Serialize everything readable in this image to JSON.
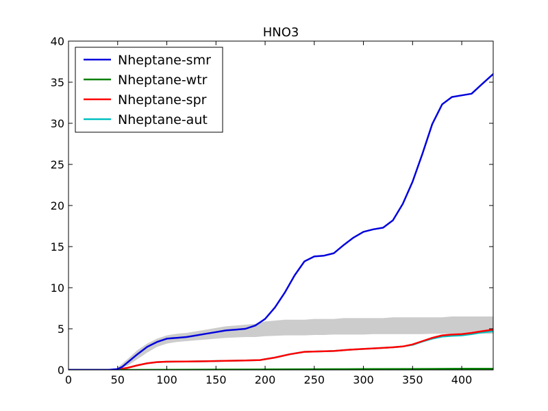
{
  "chart_data": {
    "type": "line",
    "title": "HNO3",
    "xlabel": "",
    "ylabel": "",
    "xlim": [
      0,
      432
    ],
    "ylim": [
      0,
      40
    ],
    "xticks": [
      0,
      50,
      100,
      150,
      200,
      250,
      300,
      350,
      400
    ],
    "yticks": [
      0,
      5,
      10,
      15,
      20,
      25,
      30,
      35,
      40
    ],
    "grid": false,
    "legend_position": "top-left",
    "band": {
      "color": "#cccccc",
      "x": [
        50,
        60,
        70,
        80,
        90,
        100,
        110,
        120,
        130,
        140,
        150,
        160,
        170,
        180,
        190,
        200,
        210,
        220,
        230,
        240,
        250,
        260,
        270,
        280,
        290,
        300,
        310,
        320,
        330,
        340,
        350,
        360,
        370,
        380,
        390,
        400,
        410,
        420,
        432
      ],
      "lower": [
        0.1,
        0.5,
        1.3,
        2.1,
        2.8,
        3.2,
        3.4,
        3.5,
        3.6,
        3.7,
        3.8,
        3.9,
        3.95,
        4.0,
        4.0,
        4.1,
        4.15,
        4.2,
        4.2,
        4.2,
        4.25,
        4.25,
        4.3,
        4.3,
        4.3,
        4.3,
        4.35,
        4.35,
        4.35,
        4.35,
        4.35,
        4.35,
        4.4,
        4.4,
        4.4,
        4.4,
        4.4,
        4.4,
        4.4
      ],
      "upper": [
        0.3,
        1.3,
        2.4,
        3.2,
        3.8,
        4.2,
        4.4,
        4.5,
        4.7,
        4.9,
        5.1,
        5.3,
        5.4,
        5.5,
        5.6,
        5.9,
        6.0,
        6.1,
        6.1,
        6.1,
        6.2,
        6.2,
        6.2,
        6.3,
        6.3,
        6.3,
        6.3,
        6.3,
        6.4,
        6.4,
        6.4,
        6.4,
        6.4,
        6.4,
        6.5,
        6.5,
        6.5,
        6.5,
        6.5
      ]
    },
    "series": [
      {
        "name": "Nheptane-smr",
        "color": "#0000dd",
        "x": [
          0,
          40,
          50,
          55,
          60,
          70,
          80,
          90,
          100,
          110,
          120,
          130,
          140,
          150,
          160,
          170,
          180,
          190,
          200,
          210,
          220,
          230,
          240,
          250,
          260,
          270,
          280,
          290,
          300,
          310,
          320,
          330,
          340,
          350,
          360,
          370,
          380,
          390,
          400,
          410,
          420,
          432
        ],
        "y": [
          0,
          0,
          0.1,
          0.4,
          0.9,
          1.9,
          2.8,
          3.4,
          3.8,
          3.9,
          4.0,
          4.2,
          4.4,
          4.6,
          4.8,
          4.9,
          5.0,
          5.4,
          6.2,
          7.6,
          9.4,
          11.5,
          13.2,
          13.8,
          13.9,
          14.2,
          15.2,
          16.1,
          16.8,
          17.1,
          17.3,
          18.2,
          20.2,
          22.9,
          26.3,
          29.9,
          32.3,
          33.2,
          33.4,
          33.6,
          34.7,
          36.0
        ]
      },
      {
        "name": "Nheptane-wtr",
        "color": "#008000",
        "x": [
          0,
          50,
          100,
          150,
          200,
          250,
          300,
          350,
          400,
          432
        ],
        "y": [
          0,
          0,
          0.02,
          0.04,
          0.06,
          0.08,
          0.1,
          0.12,
          0.14,
          0.15
        ]
      },
      {
        "name": "Nheptane-spr",
        "color": "#ff0000",
        "x": [
          0,
          40,
          50,
          60,
          70,
          80,
          90,
          100,
          120,
          140,
          160,
          180,
          195,
          210,
          225,
          240,
          255,
          270,
          285,
          300,
          315,
          330,
          340,
          350,
          360,
          370,
          380,
          390,
          400,
          410,
          420,
          432
        ],
        "y": [
          0,
          0,
          0.05,
          0.25,
          0.55,
          0.8,
          0.95,
          1.0,
          1.02,
          1.05,
          1.1,
          1.15,
          1.2,
          1.5,
          1.9,
          2.2,
          2.25,
          2.3,
          2.45,
          2.55,
          2.65,
          2.75,
          2.85,
          3.1,
          3.5,
          3.9,
          4.2,
          4.3,
          4.35,
          4.5,
          4.7,
          4.9
        ]
      },
      {
        "name": "Nheptane-aut",
        "color": "#00bfbf",
        "x": [
          0,
          40,
          50,
          60,
          70,
          80,
          90,
          100,
          120,
          140,
          160,
          180,
          195,
          210,
          225,
          240,
          255,
          270,
          285,
          300,
          315,
          330,
          340,
          350,
          360,
          370,
          380,
          390,
          400,
          410,
          420,
          432
        ],
        "y": [
          0,
          0,
          0.05,
          0.25,
          0.55,
          0.8,
          0.95,
          1.0,
          1.02,
          1.05,
          1.1,
          1.15,
          1.2,
          1.5,
          1.9,
          2.2,
          2.25,
          2.3,
          2.45,
          2.55,
          2.65,
          2.75,
          2.85,
          3.05,
          3.45,
          3.8,
          4.05,
          4.15,
          4.2,
          4.35,
          4.55,
          4.7
        ]
      }
    ]
  }
}
